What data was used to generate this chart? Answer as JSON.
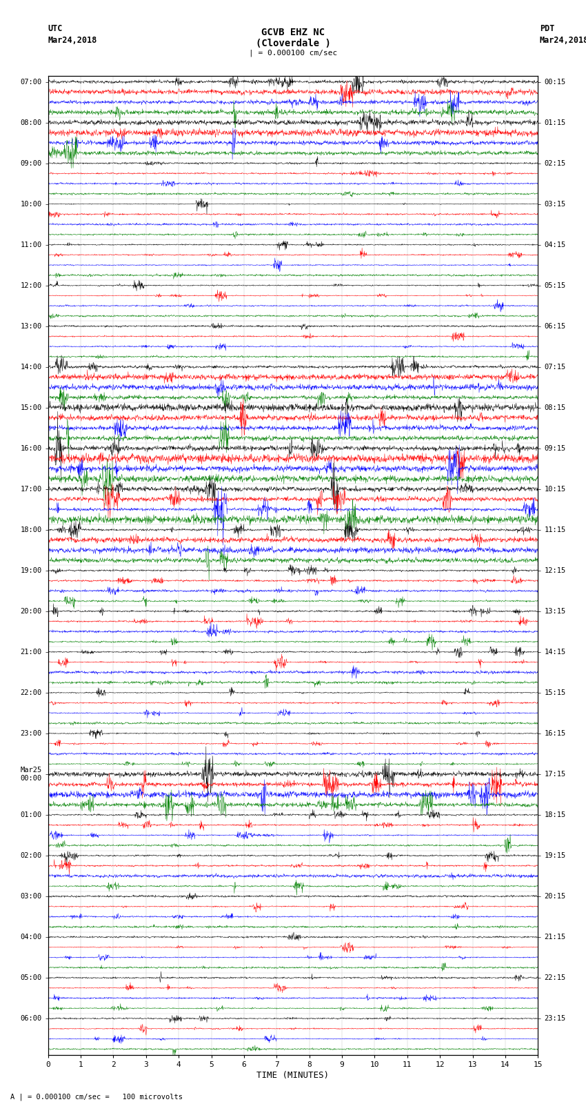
{
  "title_line1": "GCVB EHZ NC",
  "title_line2": "(Cloverdale )",
  "title_line3": "| = 0.000100 cm/sec",
  "left_label_top": "UTC",
  "left_label_date": "Mar24,2018",
  "right_label_top": "PDT",
  "right_label_date": "Mar24,2018",
  "bottom_label": "TIME (MINUTES)",
  "footer_label": "A | = 0.000100 cm/sec =   100 microvolts",
  "xlim": [
    0,
    15
  ],
  "xticks": [
    0,
    1,
    2,
    3,
    4,
    5,
    6,
    7,
    8,
    9,
    10,
    11,
    12,
    13,
    14,
    15
  ],
  "utc_labels": [
    "07:00",
    "08:00",
    "09:00",
    "10:00",
    "11:00",
    "12:00",
    "13:00",
    "14:00",
    "15:00",
    "16:00",
    "17:00",
    "18:00",
    "19:00",
    "20:00",
    "21:00",
    "22:00",
    "23:00",
    "Mar25\n00:00",
    "01:00",
    "02:00",
    "03:00",
    "04:00",
    "05:00",
    "06:00"
  ],
  "pdt_labels": [
    "00:15",
    "01:15",
    "02:15",
    "03:15",
    "04:15",
    "05:15",
    "06:15",
    "07:15",
    "08:15",
    "09:15",
    "10:15",
    "11:15",
    "12:15",
    "13:15",
    "14:15",
    "15:15",
    "16:15",
    "17:15",
    "18:15",
    "19:15",
    "20:15",
    "21:15",
    "22:15",
    "23:15"
  ],
  "n_groups": 24,
  "traces_per_group": 4,
  "trace_colors": [
    "black",
    "red",
    "blue",
    "green"
  ],
  "background_color": "white",
  "noise_scale_by_group": [
    0.38,
    0.38,
    0.12,
    0.12,
    0.12,
    0.12,
    0.12,
    0.35,
    0.45,
    0.55,
    0.55,
    0.35,
    0.18,
    0.18,
    0.18,
    0.12,
    0.12,
    0.55,
    0.18,
    0.18,
    0.12,
    0.12,
    0.12,
    0.12
  ],
  "fig_width": 8.5,
  "fig_height": 16.13,
  "dpi": 100
}
